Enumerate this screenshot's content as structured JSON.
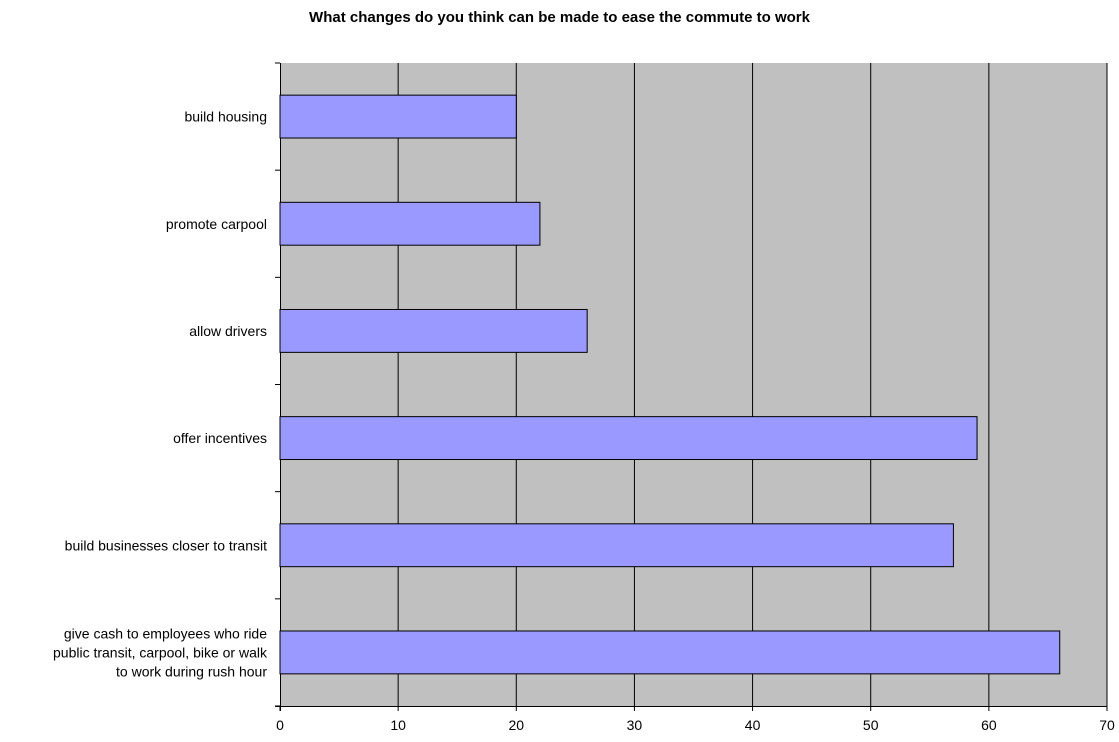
{
  "chart_data": {
    "type": "bar",
    "orientation": "horizontal",
    "title": "What changes do you think can be made to ease the commute to work",
    "xlabel": "",
    "ylabel": "",
    "categories": [
      "build housing",
      "promote carpool",
      "allow drivers",
      "offer incentives",
      "build businesses closer to transit",
      "give cash to employees who ride public transit, carpool, bike or walk to work during rush hour"
    ],
    "category_label_lines": [
      [
        "build housing"
      ],
      [
        "promote carpool"
      ],
      [
        "allow drivers"
      ],
      [
        "offer incentives"
      ],
      [
        "build businesses closer to transit"
      ],
      [
        "give cash to employees who ride",
        "public transit, carpool, bike or walk",
        "to work during rush hour"
      ]
    ],
    "values": [
      20,
      22,
      26,
      59,
      57,
      66
    ],
    "xlim": [
      0,
      70
    ],
    "xticks": [
      "0",
      "10",
      "20",
      "30",
      "40",
      "50",
      "60",
      "70"
    ],
    "grid": "vertical",
    "legend": "none",
    "colors": {
      "bar_fill": "#9999ff",
      "plot_background": "#c0c0c0",
      "gridline": "#000000",
      "bar_stroke": "#000000"
    }
  }
}
